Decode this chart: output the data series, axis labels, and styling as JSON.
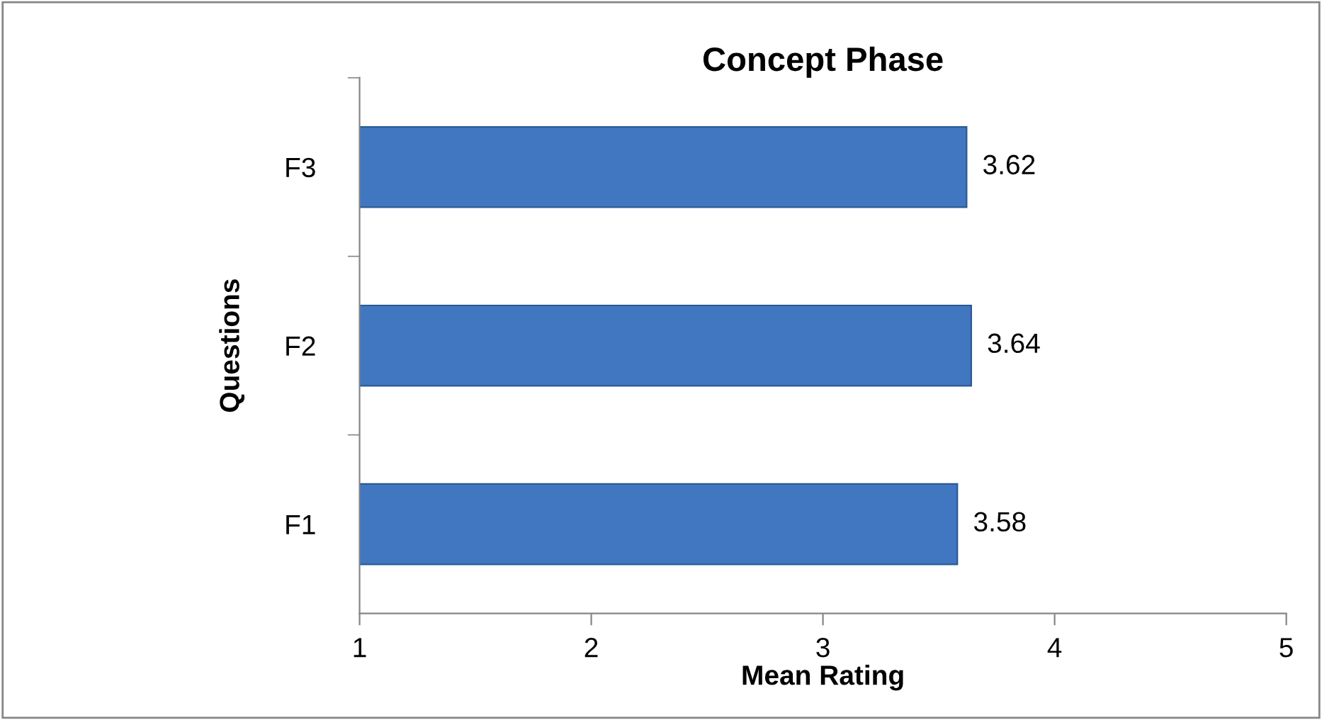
{
  "chart_data": {
    "type": "bar",
    "orientation": "horizontal",
    "title": "Concept Phase",
    "xlabel": "Mean Rating",
    "ylabel": "Questions",
    "categories": [
      "F3",
      "F2",
      "F1"
    ],
    "values": [
      3.62,
      3.64,
      3.58
    ],
    "color": "#4177c1",
    "xlim": [
      1,
      5
    ],
    "xticks": [
      1,
      2,
      3,
      4,
      5
    ],
    "grid": false,
    "data_labels": true
  }
}
